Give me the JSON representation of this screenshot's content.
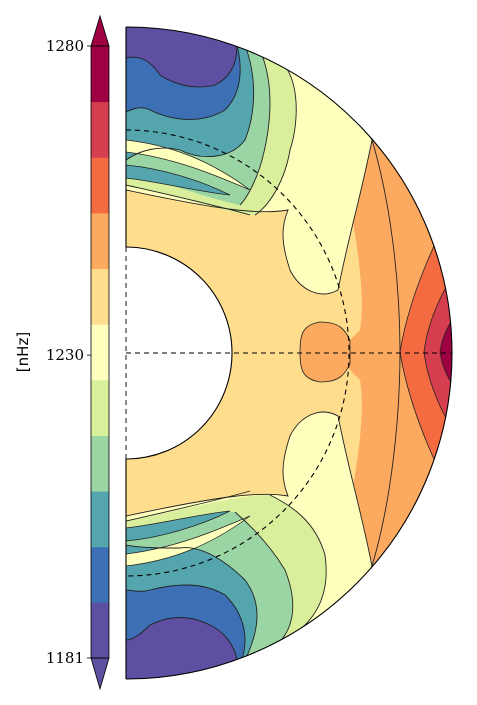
{
  "chart_data": {
    "type": "heatmap",
    "title": "",
    "colorbar": {
      "label": "[nHz]",
      "ticks": [
        1280,
        1230,
        1181
      ],
      "range": [
        1181,
        1280
      ],
      "extend": "both",
      "levels": 11,
      "colors": [
        "#5e4fa2",
        "#3d6fb4",
        "#54a5ae",
        "#9bd5a4",
        "#d9ef9b",
        "#fefebd",
        "#fedd8d",
        "#fcaa5f",
        "#f46b42",
        "#d53e4f",
        "#9e0142"
      ]
    },
    "domain": {
      "shape": "meridional half-disk",
      "inner_radius_fraction": 0.32,
      "tachocline_radius_fraction": 0.69,
      "equator_line": "dashed"
    },
    "regions": [
      {
        "latitude": "equator, outer",
        "value_range": [
          1262,
          1280
        ]
      },
      {
        "latitude": "equator, mid",
        "value_range": [
          1235,
          1262
        ]
      },
      {
        "latitude": "mid latitudes",
        "value_range": [
          1226,
          1235
        ]
      },
      {
        "latitude": "high latitudes",
        "value_range": [
          1199,
          1217
        ]
      },
      {
        "latitude": "poles",
        "value_range": [
          1181,
          1199
        ]
      }
    ]
  }
}
